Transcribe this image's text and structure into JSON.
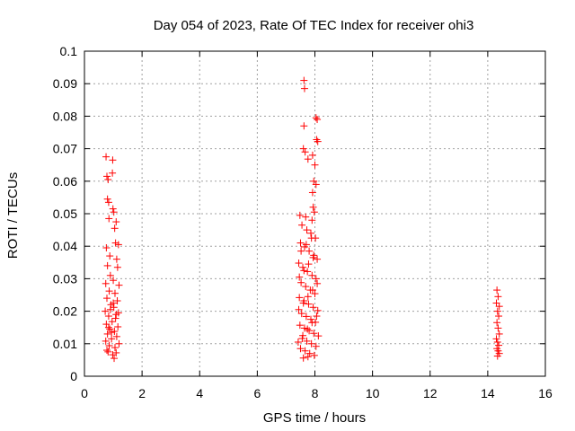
{
  "chart_data": {
    "type": "scatter",
    "title": "Day 054 of 2023, Rate Of TEC Index for receiver ohi3",
    "xlabel": "GPS time / hours",
    "ylabel": "ROTI / TECUs",
    "xlim": [
      0,
      16
    ],
    "ylim": [
      0,
      0.1
    ],
    "xticks": [
      0,
      2,
      4,
      6,
      8,
      10,
      12,
      14,
      16
    ],
    "yticks": [
      0,
      0.01,
      0.02,
      0.03,
      0.04,
      0.05,
      0.06,
      0.07,
      0.08,
      0.09,
      0.1
    ],
    "xtick_labels": [
      "0",
      "2",
      "4",
      "6",
      "8",
      "10",
      "12",
      "14",
      "16"
    ],
    "ytick_labels": [
      "0",
      "0.01",
      "0.02",
      "0.03",
      "0.04",
      "0.05",
      "0.06",
      "0.07",
      "0.08",
      "0.09",
      "0.1"
    ],
    "grid": true,
    "marker": "+",
    "marker_color": "#ff0000",
    "series": [
      {
        "points": [
          [
            0.75,
            0.0675
          ],
          [
            0.98,
            0.0665
          ],
          [
            0.78,
            0.0615
          ],
          [
            0.82,
            0.0605
          ],
          [
            0.97,
            0.0625
          ],
          [
            0.8,
            0.0545
          ],
          [
            0.84,
            0.0535
          ],
          [
            0.99,
            0.0515
          ],
          [
            1.02,
            0.0505
          ],
          [
            0.85,
            0.0485
          ],
          [
            1.1,
            0.0475
          ],
          [
            1.05,
            0.0455
          ],
          [
            0.76,
            0.0395
          ],
          [
            1.08,
            0.041
          ],
          [
            1.18,
            0.0405
          ],
          [
            0.88,
            0.037
          ],
          [
            1.12,
            0.036
          ],
          [
            0.8,
            0.034
          ],
          [
            1.15,
            0.0335
          ],
          [
            0.9,
            0.031
          ],
          [
            0.74,
            0.0285
          ],
          [
            1.0,
            0.0295
          ],
          [
            1.2,
            0.028
          ],
          [
            0.86,
            0.0262
          ],
          [
            1.06,
            0.0255
          ],
          [
            0.78,
            0.024
          ],
          [
            1.14,
            0.0232
          ],
          [
            0.92,
            0.022
          ],
          [
            1.02,
            0.0212
          ],
          [
            0.72,
            0.02
          ],
          [
            1.18,
            0.0195
          ],
          [
            0.84,
            0.0185
          ],
          [
            1.08,
            0.0178
          ],
          [
            0.96,
            0.0168
          ],
          [
            0.76,
            0.016
          ],
          [
            1.16,
            0.0152
          ],
          [
            0.88,
            0.0145
          ],
          [
            1.04,
            0.0138
          ],
          [
            0.8,
            0.013
          ],
          [
            1.12,
            0.0122
          ],
          [
            0.94,
            0.0115
          ],
          [
            0.74,
            0.0108
          ],
          [
            1.2,
            0.01
          ],
          [
            0.86,
            0.0094
          ],
          [
            1.06,
            0.0088
          ],
          [
            0.78,
            0.008
          ],
          [
            1.1,
            0.0072
          ],
          [
            0.98,
            0.0066
          ],
          [
            1.03,
            0.0055
          ],
          [
            0.82,
            0.0075
          ],
          [
            0.9,
            0.0205
          ],
          [
            1.0,
            0.0225
          ],
          [
            1.1,
            0.019
          ],
          [
            0.84,
            0.015
          ],
          [
            0.94,
            0.0135
          ],
          [
            7.62,
            0.091
          ],
          [
            7.64,
            0.0885
          ],
          [
            8.04,
            0.0795
          ],
          [
            8.08,
            0.079
          ],
          [
            7.62,
            0.077
          ],
          [
            8.06,
            0.0728
          ],
          [
            8.1,
            0.0722
          ],
          [
            7.6,
            0.07
          ],
          [
            7.66,
            0.069
          ],
          [
            7.92,
            0.068
          ],
          [
            7.76,
            0.0668
          ],
          [
            8.0,
            0.065
          ],
          [
            7.96,
            0.06
          ],
          [
            8.04,
            0.059
          ],
          [
            7.92,
            0.0565
          ],
          [
            7.94,
            0.052
          ],
          [
            7.98,
            0.0505
          ],
          [
            7.48,
            0.0495
          ],
          [
            7.68,
            0.049
          ],
          [
            7.9,
            0.048
          ],
          [
            7.55,
            0.0465
          ],
          [
            7.72,
            0.045
          ],
          [
            7.86,
            0.044
          ],
          [
            8.02,
            0.0425
          ],
          [
            7.5,
            0.041
          ],
          [
            7.64,
            0.0398
          ],
          [
            7.8,
            0.0385
          ],
          [
            7.96,
            0.0372
          ],
          [
            8.08,
            0.036
          ],
          [
            7.44,
            0.0348
          ],
          [
            7.58,
            0.0335
          ],
          [
            7.74,
            0.0322
          ],
          [
            7.9,
            0.031
          ],
          [
            8.04,
            0.03
          ],
          [
            7.52,
            0.0288
          ],
          [
            7.68,
            0.0276
          ],
          [
            7.84,
            0.0265
          ],
          [
            8.0,
            0.0254
          ],
          [
            7.46,
            0.0242
          ],
          [
            7.62,
            0.0232
          ],
          [
            7.78,
            0.0222
          ],
          [
            7.94,
            0.0212
          ],
          [
            8.1,
            0.0202
          ],
          [
            7.54,
            0.0193
          ],
          [
            7.7,
            0.0184
          ],
          [
            7.86,
            0.0175
          ],
          [
            8.02,
            0.0166
          ],
          [
            7.48,
            0.0157
          ],
          [
            7.64,
            0.0148
          ],
          [
            7.8,
            0.014
          ],
          [
            7.96,
            0.0132
          ],
          [
            8.12,
            0.0124
          ],
          [
            7.56,
            0.0116
          ],
          [
            7.72,
            0.0108
          ],
          [
            7.88,
            0.01
          ],
          [
            8.04,
            0.0092
          ],
          [
            7.5,
            0.0085
          ],
          [
            7.66,
            0.0078
          ],
          [
            7.82,
            0.007
          ],
          [
            7.98,
            0.0064
          ],
          [
            7.6,
            0.0056
          ],
          [
            7.76,
            0.006
          ],
          [
            7.42,
            0.0105
          ],
          [
            7.58,
            0.0125
          ],
          [
            7.74,
            0.0145
          ],
          [
            7.9,
            0.0165
          ],
          [
            8.06,
            0.0185
          ],
          [
            7.44,
            0.0205
          ],
          [
            7.6,
            0.0225
          ],
          [
            7.76,
            0.0245
          ],
          [
            7.92,
            0.0265
          ],
          [
            8.08,
            0.0285
          ],
          [
            7.46,
            0.0305
          ],
          [
            7.62,
            0.0325
          ],
          [
            7.78,
            0.0345
          ],
          [
            7.94,
            0.0365
          ],
          [
            7.52,
            0.0385
          ],
          [
            7.7,
            0.0405
          ],
          [
            7.88,
            0.0425
          ],
          [
            14.32,
            0.0265
          ],
          [
            14.36,
            0.0245
          ],
          [
            14.3,
            0.0225
          ],
          [
            14.4,
            0.0215
          ],
          [
            14.34,
            0.02
          ],
          [
            14.38,
            0.0185
          ],
          [
            14.32,
            0.0165
          ],
          [
            14.36,
            0.0148
          ],
          [
            14.4,
            0.013
          ],
          [
            14.3,
            0.0115
          ],
          [
            14.34,
            0.0105
          ],
          [
            14.38,
            0.0095
          ],
          [
            14.32,
            0.0085
          ],
          [
            14.36,
            0.0078
          ],
          [
            14.4,
            0.007
          ],
          [
            14.34,
            0.0062
          ]
        ]
      }
    ]
  }
}
